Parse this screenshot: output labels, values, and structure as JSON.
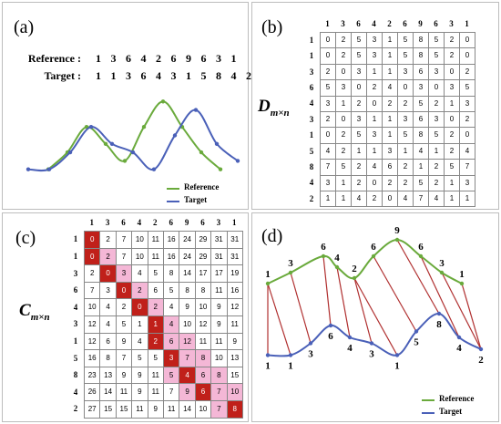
{
  "panel_a": {
    "label": "(a)",
    "reference_label": "Reference :",
    "target_label": "Target :",
    "reference": [
      "1",
      "3",
      "6",
      "4",
      "2",
      "6",
      "9",
      "6",
      "3",
      "1"
    ],
    "target": [
      "1",
      "1",
      "3",
      "6",
      "4",
      "3",
      "1",
      "5",
      "8",
      "4",
      "2"
    ],
    "legend": [
      {
        "name": "Reference",
        "color": "#6aaa3c"
      },
      {
        "name": "Target",
        "color": "#4a60b8"
      }
    ]
  },
  "panel_b": {
    "label": "(b)",
    "symbol": "D",
    "symbol_sub": "m×n",
    "col_headers": [
      "1",
      "3",
      "6",
      "4",
      "2",
      "6",
      "9",
      "6",
      "3",
      "1"
    ],
    "row_headers": [
      "1",
      "1",
      "3",
      "6",
      "4",
      "3",
      "1",
      "5",
      "8",
      "4",
      "2"
    ],
    "matrix": [
      [
        "0",
        "2",
        "5",
        "3",
        "1",
        "5",
        "8",
        "5",
        "2",
        "0"
      ],
      [
        "0",
        "2",
        "5",
        "3",
        "1",
        "5",
        "8",
        "5",
        "2",
        "0"
      ],
      [
        "2",
        "0",
        "3",
        "1",
        "1",
        "3",
        "6",
        "3",
        "0",
        "2"
      ],
      [
        "5",
        "3",
        "0",
        "2",
        "4",
        "0",
        "3",
        "0",
        "3",
        "5"
      ],
      [
        "3",
        "1",
        "2",
        "0",
        "2",
        "2",
        "5",
        "2",
        "1",
        "3"
      ],
      [
        "2",
        "0",
        "3",
        "1",
        "1",
        "3",
        "6",
        "3",
        "0",
        "2"
      ],
      [
        "0",
        "2",
        "5",
        "3",
        "1",
        "5",
        "8",
        "5",
        "2",
        "0"
      ],
      [
        "4",
        "2",
        "1",
        "1",
        "3",
        "1",
        "4",
        "1",
        "2",
        "4"
      ],
      [
        "7",
        "5",
        "2",
        "4",
        "6",
        "2",
        "1",
        "2",
        "5",
        "7"
      ],
      [
        "3",
        "1",
        "2",
        "0",
        "2",
        "2",
        "5",
        "2",
        "1",
        "3"
      ],
      [
        "1",
        "1",
        "4",
        "2",
        "0",
        "4",
        "7",
        "4",
        "1",
        "1"
      ]
    ]
  },
  "panel_c": {
    "label": "(c)",
    "symbol": "C",
    "symbol_sub": "m×n",
    "col_headers": [
      "1",
      "3",
      "6",
      "4",
      "2",
      "6",
      "9",
      "6",
      "3",
      "1"
    ],
    "row_headers": [
      "1",
      "1",
      "3",
      "6",
      "4",
      "3",
      "1",
      "5",
      "8",
      "4",
      "2"
    ],
    "matrix": [
      [
        "0",
        "2",
        "7",
        "10",
        "11",
        "16",
        "24",
        "29",
        "31",
        "31"
      ],
      [
        "0",
        "2",
        "7",
        "10",
        "11",
        "16",
        "24",
        "29",
        "31",
        "31"
      ],
      [
        "2",
        "0",
        "3",
        "4",
        "5",
        "8",
        "14",
        "17",
        "17",
        "19"
      ],
      [
        "7",
        "3",
        "0",
        "2",
        "6",
        "5",
        "8",
        "8",
        "11",
        "16"
      ],
      [
        "10",
        "4",
        "2",
        "0",
        "2",
        "4",
        "9",
        "10",
        "9",
        "12"
      ],
      [
        "12",
        "4",
        "5",
        "1",
        "1",
        "4",
        "10",
        "12",
        "9",
        "11"
      ],
      [
        "12",
        "6",
        "9",
        "4",
        "2",
        "6",
        "12",
        "11",
        "11",
        "9"
      ],
      [
        "16",
        "8",
        "7",
        "5",
        "5",
        "3",
        "7",
        "8",
        "10",
        "13"
      ],
      [
        "23",
        "13",
        "9",
        "9",
        "11",
        "5",
        "4",
        "6",
        "8",
        "15"
      ],
      [
        "26",
        "14",
        "11",
        "9",
        "11",
        "7",
        "9",
        "6",
        "7",
        "10"
      ],
      [
        "27",
        "15",
        "15",
        "11",
        "9",
        "11",
        "14",
        "10",
        "7",
        "8"
      ]
    ],
    "path_cells": [
      [
        0,
        0
      ],
      [
        1,
        0
      ],
      [
        2,
        1
      ],
      [
        3,
        2
      ],
      [
        4,
        3
      ],
      [
        5,
        4
      ],
      [
        6,
        4
      ],
      [
        7,
        5
      ],
      [
        8,
        6
      ],
      [
        9,
        7
      ],
      [
        10,
        9
      ]
    ],
    "shade_cells": [
      [
        1,
        1
      ],
      [
        2,
        2
      ],
      [
        3,
        3
      ],
      [
        4,
        4
      ],
      [
        5,
        5
      ],
      [
        6,
        5
      ],
      [
        6,
        6
      ],
      [
        7,
        6
      ],
      [
        7,
        7
      ],
      [
        8,
        5
      ],
      [
        8,
        7
      ],
      [
        8,
        8
      ],
      [
        9,
        6
      ],
      [
        9,
        8
      ],
      [
        9,
        9
      ],
      [
        10,
        8
      ]
    ],
    "path_color": "#c0201a",
    "shade_color": "#f4b7d6"
  },
  "panel_d": {
    "label": "(d)",
    "reference": [
      "1",
      "3",
      "6",
      "4",
      "2",
      "6",
      "9",
      "6",
      "3",
      "1"
    ],
    "target": [
      "1",
      "1",
      "3",
      "6",
      "4",
      "3",
      "1",
      "5",
      "8",
      "4",
      "2"
    ],
    "links": [
      [
        0,
        0
      ],
      [
        0,
        1
      ],
      [
        1,
        2
      ],
      [
        2,
        3
      ],
      [
        3,
        4
      ],
      [
        4,
        5
      ],
      [
        4,
        6
      ],
      [
        5,
        7
      ],
      [
        6,
        8
      ],
      [
        7,
        9
      ],
      [
        8,
        10
      ],
      [
        9,
        10
      ]
    ],
    "legend": [
      {
        "name": "Reference",
        "color": "#6aaa3c"
      },
      {
        "name": "Target",
        "color": "#4a60b8"
      }
    ]
  },
  "colors": {
    "reference": "#6aaa3c",
    "target": "#4a60b8",
    "link": "#b03030"
  }
}
